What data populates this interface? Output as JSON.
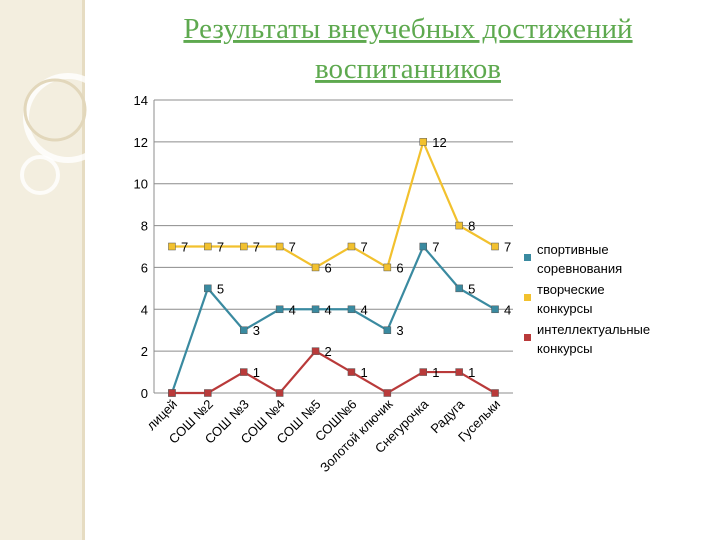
{
  "chart_data": {
    "type": "line",
    "title": [
      "Результаты внеучебных достижений",
      "воспитанников"
    ],
    "categories": [
      "лицей",
      "СОШ №2",
      "СОШ №3",
      "СОШ №4",
      "СОШ №5",
      "СОШ№6",
      "Золотой ключик",
      "Снегурочка",
      "Радуга",
      "Гусельки"
    ],
    "series": [
      {
        "name": "спортивные соревнования",
        "color": "#3a8aa0",
        "values": [
          0,
          5,
          3,
          4,
          4,
          4,
          3,
          7,
          5,
          4
        ]
      },
      {
        "name": "творческие конкурсы",
        "color": "#f2c12e",
        "values": [
          7,
          7,
          7,
          7,
          6,
          7,
          6,
          12,
          8,
          7
        ]
      },
      {
        "name": "интеллектуальные конкурсы",
        "color": "#b93a3a",
        "values": [
          0,
          0,
          1,
          0,
          2,
          1,
          0,
          1,
          1,
          0
        ]
      }
    ],
    "ylim": [
      0,
      14
    ],
    "yticks": [
      0,
      2,
      4,
      6,
      8,
      10,
      12,
      14
    ],
    "grid": true,
    "legend": "right"
  }
}
